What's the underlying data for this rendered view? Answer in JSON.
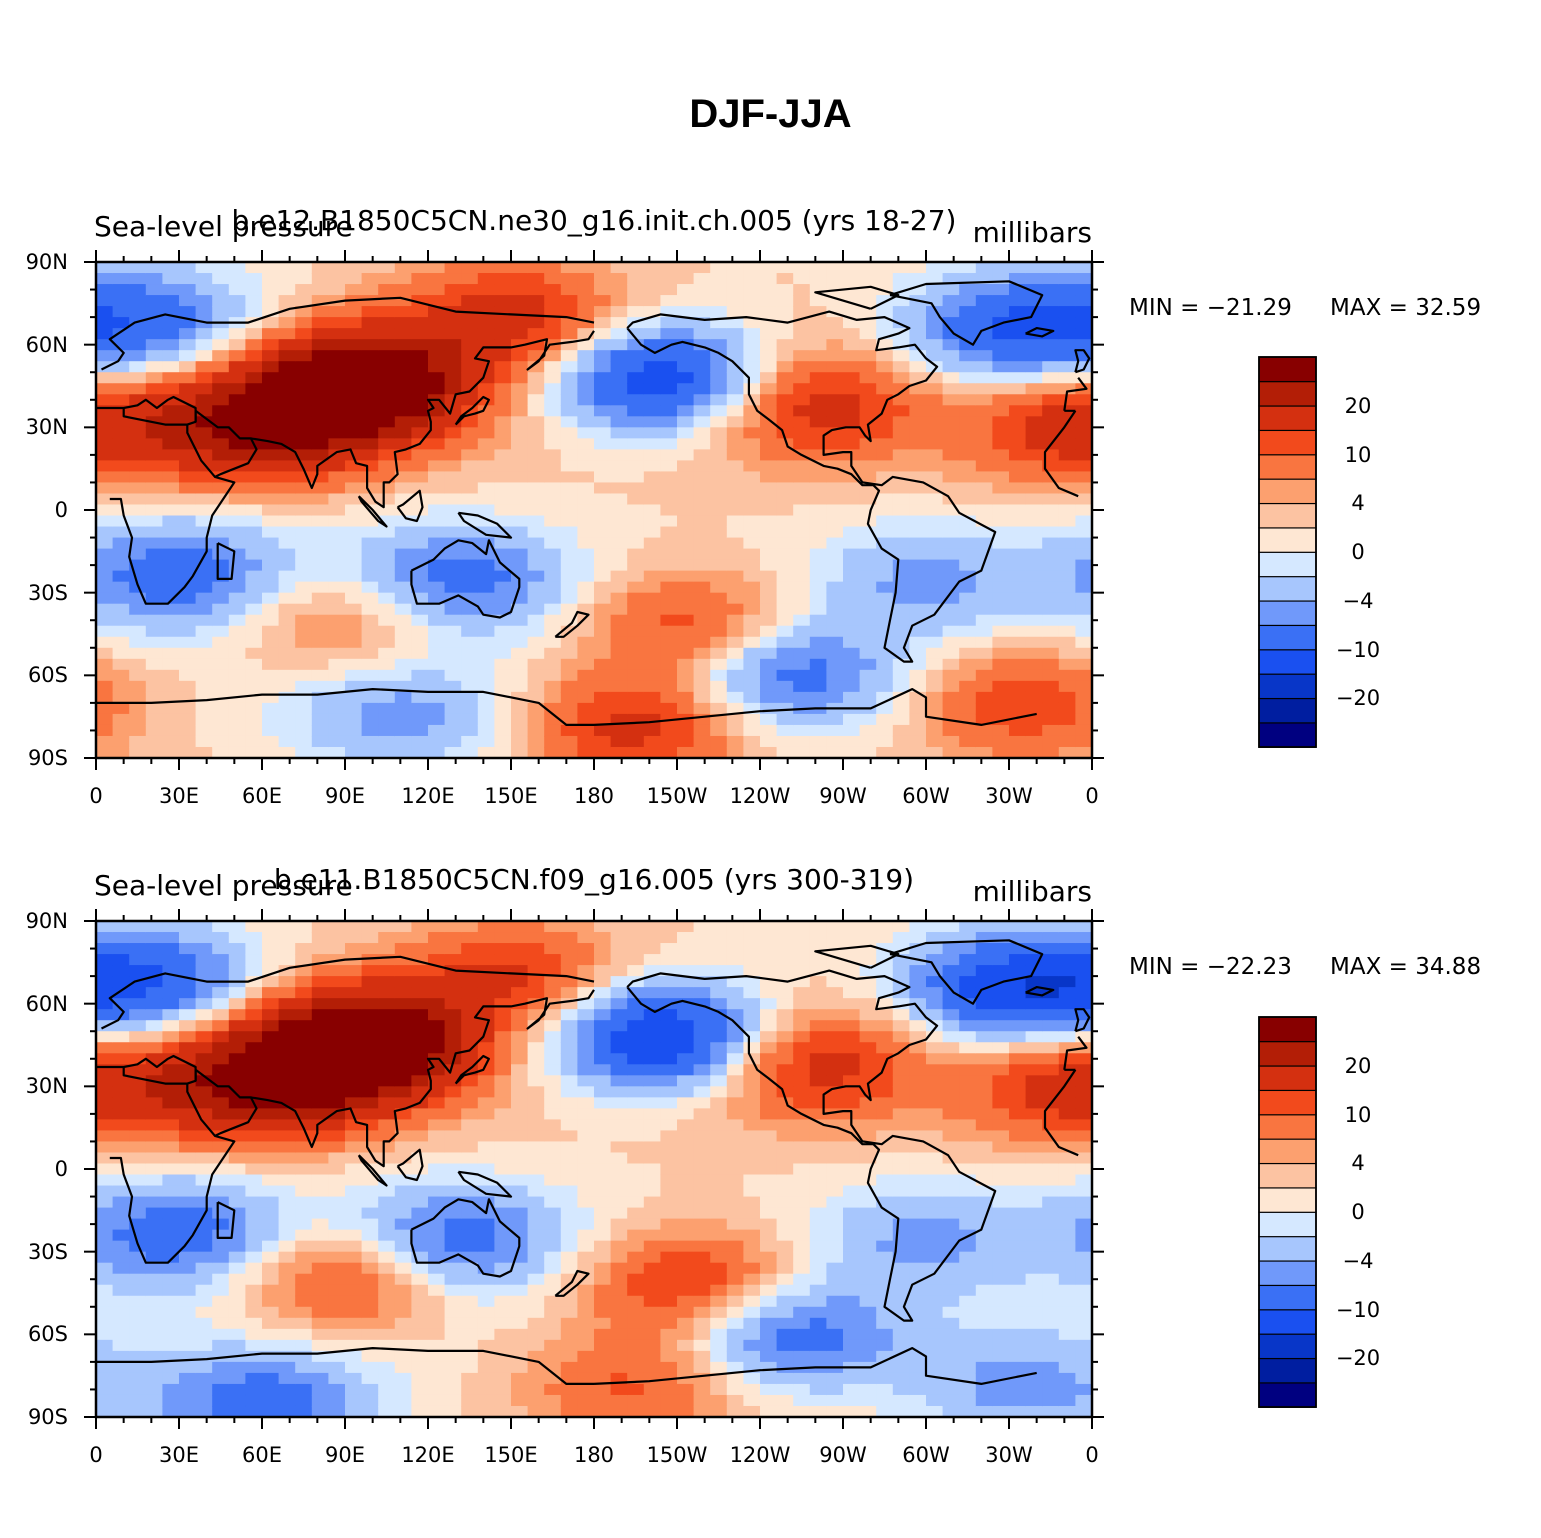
{
  "title": "DJF-JJA",
  "panels": [
    {
      "left_string": "Sea-level pressure",
      "center_string": "b.e12.B1850C5CN.ne30_g16.init.ch.005 (yrs 18-27)",
      "right_string": "millibars",
      "min_label": "MIN = −21.29",
      "max_label": "MAX =   32.59"
    },
    {
      "left_string": "Sea-level pressure",
      "center_string": "b.e11.B1850C5CN.f09_g16.005 (yrs 300-319)",
      "right_string": "millibars",
      "min_label": "MIN = −22.23",
      "max_label": "MAX =   34.88"
    }
  ],
  "lat_labels": [
    "90N",
    "60N",
    "30N",
    "0",
    "30S",
    "60S",
    "90S"
  ],
  "lon_labels": [
    "0",
    "30E",
    "60E",
    "90E",
    "120E",
    "150E",
    "180",
    "150W",
    "120W",
    "90W",
    "60W",
    "30W",
    "0"
  ],
  "colorbar": {
    "colors": [
      "#000080",
      "#001ea0",
      "#0836c8",
      "#1a50f0",
      "#3a70f5",
      "#7099fa",
      "#a7c6fd",
      "#d5e8ff",
      "#fee7d3",
      "#fcc3a2",
      "#fca06f",
      "#f97540",
      "#f24a1c",
      "#d43010",
      "#b31e06",
      "#880000"
    ],
    "tick_labels": [
      "20",
      "10",
      "4",
      "0",
      "−4",
      "−10",
      "−20"
    ]
  },
  "chart_data": [
    {
      "type": "heatmap",
      "title": "DJF-JJA",
      "subtitle": "b.e12.B1850C5CN.ne30_g16.init.ch.005 (yrs 18-27)",
      "variable": "Sea-level pressure",
      "units": "millibars",
      "min": -21.29,
      "max": 32.59,
      "contour_levels": [
        -30,
        -25,
        -20,
        -15,
        -10,
        -7,
        -4,
        -2,
        0,
        2,
        4,
        7,
        10,
        15,
        20,
        25,
        30
      ],
      "xlim": [
        0,
        360
      ],
      "ylim": [
        -90,
        90
      ],
      "features": [
        {
          "lon": 95,
          "lat": 45,
          "value": 28
        },
        {
          "lon": 60,
          "lat": 30,
          "value": 18
        },
        {
          "lon": 150,
          "lat": 70,
          "value": 12
        },
        {
          "lon": 205,
          "lat": 48,
          "value": -20
        },
        {
          "lon": 258,
          "lat": 38,
          "value": 12
        },
        {
          "lon": 330,
          "lat": 65,
          "value": -15
        },
        {
          "lon": 20,
          "lat": 68,
          "value": -12
        },
        {
          "lon": 355,
          "lat": 30,
          "value": 12
        },
        {
          "lon": 30,
          "lat": -23,
          "value": -12
        },
        {
          "lon": 130,
          "lat": -25,
          "value": -12
        },
        {
          "lon": 300,
          "lat": -25,
          "value": -7
        },
        {
          "lon": 90,
          "lat": -40,
          "value": 7
        },
        {
          "lon": 215,
          "lat": -42,
          "value": 10
        },
        {
          "lon": 250,
          "lat": -60,
          "value": -12
        },
        {
          "lon": 195,
          "lat": -78,
          "value": 12
        },
        {
          "lon": 335,
          "lat": -70,
          "value": 10
        },
        {
          "lon": 110,
          "lat": -75,
          "value": -8
        }
      ]
    },
    {
      "type": "heatmap",
      "title": "DJF-JJA",
      "subtitle": "b.e11.B1850C5CN.f09_g16.005 (yrs 300-319)",
      "variable": "Sea-level pressure",
      "units": "millibars",
      "min": -22.23,
      "max": 34.88,
      "contour_levels": [
        -30,
        -25,
        -20,
        -15,
        -10,
        -7,
        -4,
        -2,
        0,
        2,
        4,
        7,
        10,
        15,
        20,
        25,
        30
      ],
      "xlim": [
        0,
        360
      ],
      "ylim": [
        -90,
        90
      ],
      "features": [
        {
          "lon": 95,
          "lat": 45,
          "value": 30
        },
        {
          "lon": 60,
          "lat": 30,
          "value": 18
        },
        {
          "lon": 150,
          "lat": 70,
          "value": 10
        },
        {
          "lon": 205,
          "lat": 48,
          "value": -22
        },
        {
          "lon": 258,
          "lat": 38,
          "value": 12
        },
        {
          "lon": 330,
          "lat": 65,
          "value": -18
        },
        {
          "lon": 20,
          "lat": 68,
          "value": -14
        },
        {
          "lon": 355,
          "lat": 30,
          "value": 12
        },
        {
          "lon": 30,
          "lat": -23,
          "value": -12
        },
        {
          "lon": 130,
          "lat": -25,
          "value": -12
        },
        {
          "lon": 300,
          "lat": -25,
          "value": -7
        },
        {
          "lon": 90,
          "lat": -40,
          "value": 10
        },
        {
          "lon": 215,
          "lat": -42,
          "value": 12
        },
        {
          "lon": 250,
          "lat": -60,
          "value": -12
        },
        {
          "lon": 60,
          "lat": -85,
          "value": -12
        },
        {
          "lon": 195,
          "lat": -78,
          "value": 8
        },
        {
          "lon": 335,
          "lat": -80,
          "value": -8
        }
      ]
    }
  ]
}
